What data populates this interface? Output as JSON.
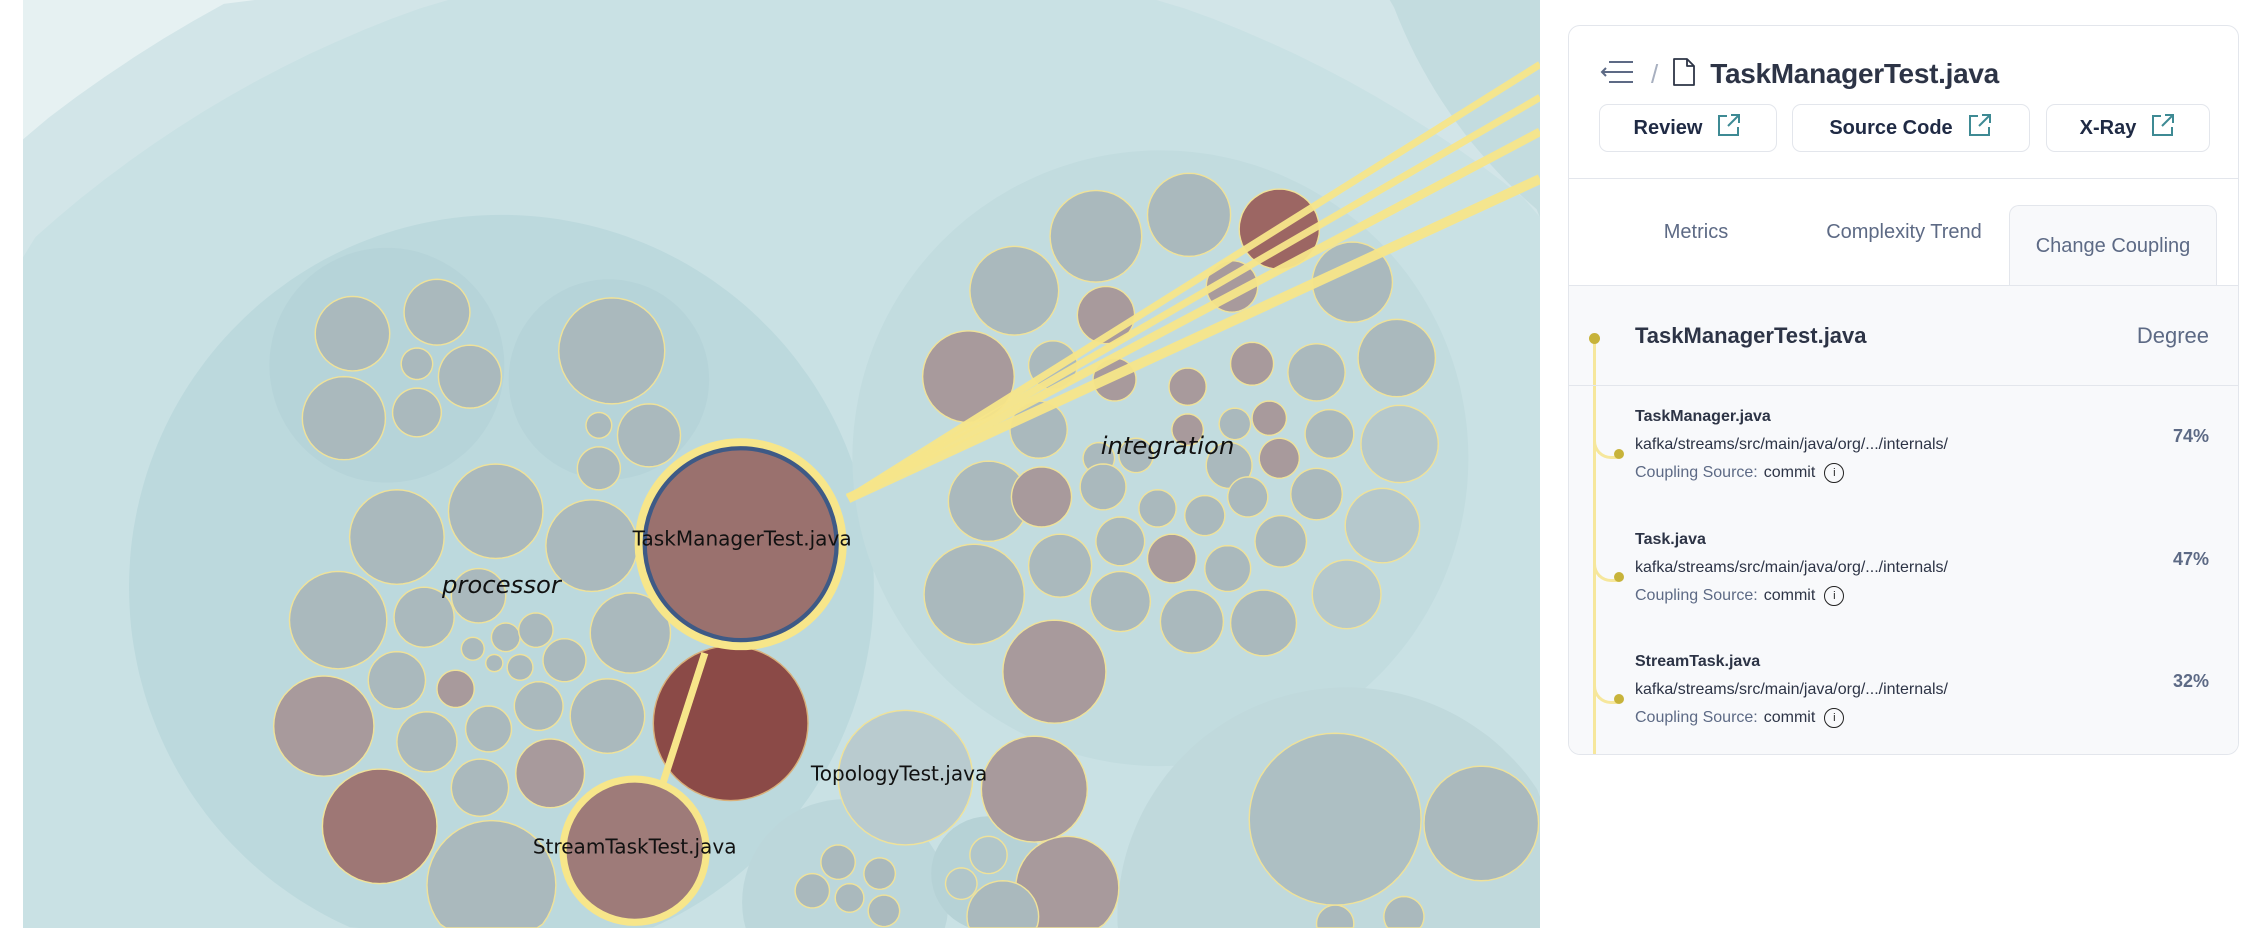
{
  "map": {
    "groups": [
      {
        "label": "processor"
      },
      {
        "label": "integration"
      }
    ],
    "node_labels": {
      "selected": "TaskManagerTest.java",
      "topology": "TopologyTest.java",
      "streamtask": "StreamTaskTest.java"
    },
    "colors": {
      "background": "#e6f1f2",
      "group": "#bcd9dd",
      "node_gray": "#aab9bd",
      "node_brown": "#a89a9c",
      "node_hot": "#8b4a47",
      "selected": "#9a716e",
      "coupling_line": "#f7e68a",
      "selection_ring": "#3e5a86"
    }
  },
  "panel": {
    "breadcrumb": {
      "back_icon": "collapse-left-icon",
      "separator": "/",
      "file_icon": "file-icon",
      "title": "TaskManagerTest.java"
    },
    "buttons": [
      {
        "label": "Review",
        "icon": "external-link-icon"
      },
      {
        "label": "Source Code",
        "icon": "external-link-icon"
      },
      {
        "label": "X-Ray",
        "icon": "external-link-icon"
      }
    ],
    "tabs": [
      {
        "label": "Metrics",
        "active": false
      },
      {
        "label": "Complexity Trend",
        "active": false
      },
      {
        "label": "Change Coupling",
        "active": true
      }
    ],
    "coupling": {
      "file": "TaskManagerTest.java",
      "degree_header": "Degree",
      "source_label": "Coupling Source:",
      "items": [
        {
          "name": "TaskManager.java",
          "path": "kafka/streams/src/main/java/org/.../internals/",
          "source": "commit",
          "degree": "74%"
        },
        {
          "name": "Task.java",
          "path": "kafka/streams/src/main/java/org/.../internals/",
          "source": "commit",
          "degree": "47%"
        },
        {
          "name": "StreamTask.java",
          "path": "kafka/streams/src/main/java/org/.../internals/",
          "source": "commit",
          "degree": "32%"
        }
      ]
    }
  }
}
